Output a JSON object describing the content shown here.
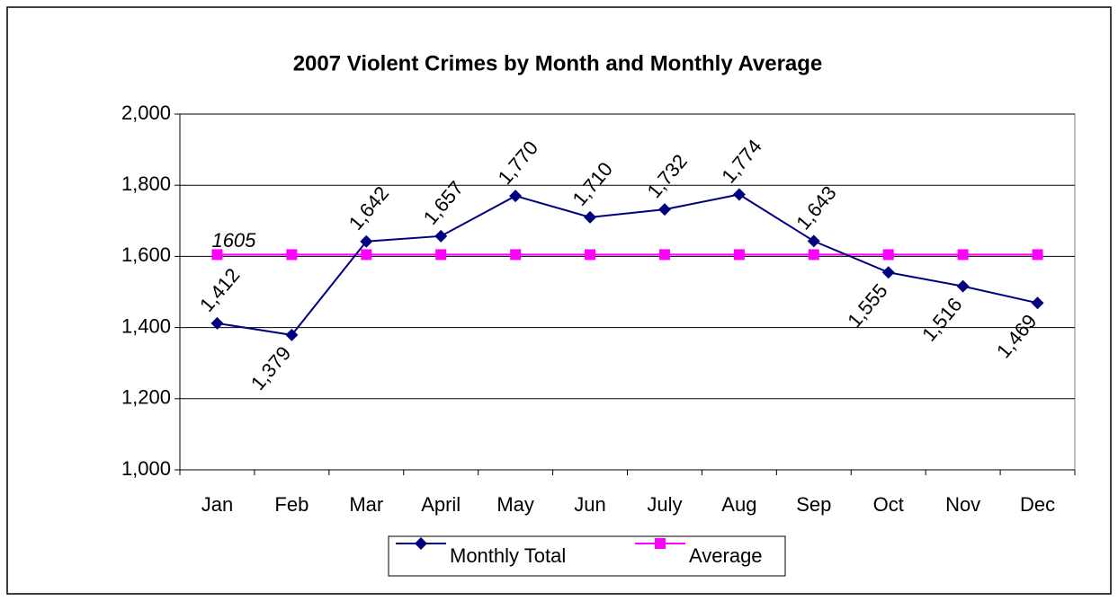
{
  "chart_data": {
    "type": "line",
    "title": "2007 Violent Crimes by Month and Monthly Average",
    "categories": [
      "Jan",
      "Feb",
      "Mar",
      "April",
      "May",
      "Jun",
      "July",
      "Aug",
      "Sep",
      "Oct",
      "Nov",
      "Dec"
    ],
    "series": [
      {
        "name": "Monthly Total",
        "color": "#000080",
        "marker": "diamond",
        "values": [
          1412,
          1379,
          1642,
          1657,
          1770,
          1710,
          1732,
          1774,
          1643,
          1555,
          1516,
          1469
        ],
        "value_labels": [
          "1,412",
          "1,379",
          "1,642",
          "1,657",
          "1,770",
          "1,710",
          "1,732",
          "1,774",
          "1,643",
          "1,555",
          "1,516",
          "1,469"
        ]
      },
      {
        "name": "Average",
        "color": "#ff00ff",
        "marker": "square",
        "values": [
          1605,
          1605,
          1605,
          1605,
          1605,
          1605,
          1605,
          1605,
          1605,
          1605,
          1605,
          1605
        ]
      }
    ],
    "ylim": [
      1000,
      2000
    ],
    "yticks": [
      {
        "value": 1000,
        "label": "1,000"
      },
      {
        "value": 1200,
        "label": "1,200"
      },
      {
        "value": 1400,
        "label": "1,400"
      },
      {
        "value": 1600,
        "label": "1,600"
      },
      {
        "value": 1800,
        "label": "1,800"
      },
      {
        "value": 2000,
        "label": "2,000"
      }
    ],
    "grid": true,
    "legend": "bottom"
  }
}
